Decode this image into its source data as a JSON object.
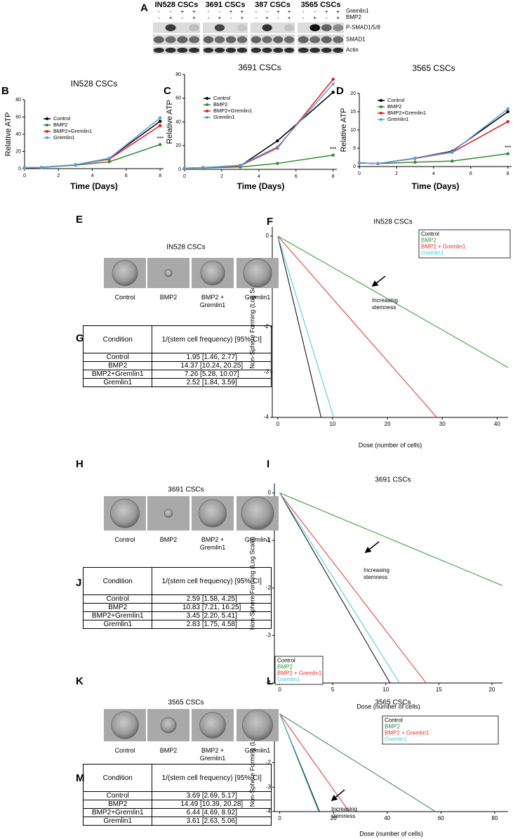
{
  "western_blot": {
    "panel": "A",
    "groups": [
      "IN528 CSCs",
      "3691 CSCs",
      "387 CSCs",
      "3565 CSCs"
    ],
    "treatment_rows": [
      {
        "name": "Gremlin1",
        "signs": [
          "-",
          "-",
          "+",
          "+"
        ]
      },
      {
        "name": "BMP2",
        "signs": [
          "-",
          "+",
          "-",
          "+"
        ]
      }
    ],
    "bands": [
      "P-SMAD1/5/8",
      "SMAD1",
      "Actin"
    ]
  },
  "chart_data": [
    {
      "panel": "B",
      "type": "line",
      "title": "IN528 CSCs",
      "x_label": "Time (Days)",
      "y_label": "Relative ATP",
      "x": [
        0,
        1,
        3,
        5,
        8
      ],
      "xlim": [
        0,
        8.2
      ],
      "xticks": [
        0,
        2,
        4,
        6,
        8
      ],
      "ylim": [
        0,
        80
      ],
      "yticks": [
        0,
        20,
        40,
        60,
        80
      ],
      "markers": true,
      "legend": "upper-left",
      "legend_style": "marker",
      "annotation": "***",
      "series": [
        {
          "name": "Control",
          "color": "#000000",
          "values": [
            1,
            1.5,
            4.5,
            12,
            55
          ]
        },
        {
          "name": "BMP2",
          "color": "#2e8b2e",
          "values": [
            1,
            1.3,
            4,
            8,
            28
          ]
        },
        {
          "name": "BMP2+Gremlin1",
          "color": "#e41a1c",
          "values": [
            1,
            1.5,
            4.5,
            11,
            50
          ]
        },
        {
          "name": "Gremlin1",
          "color": "#5aa0e6",
          "values": [
            1,
            1.5,
            4.5,
            12,
            59
          ]
        }
      ]
    },
    {
      "panel": "C",
      "type": "line",
      "title": "3691 CSCs",
      "x_label": "Time (Days)",
      "y_label": "Relative ATP",
      "x": [
        0,
        1,
        3,
        5,
        8
      ],
      "xlim": [
        0,
        8.2
      ],
      "xticks": [
        0,
        2,
        4,
        6,
        8
      ],
      "ylim": [
        0,
        80
      ],
      "yticks": [
        0,
        20,
        40,
        60,
        80
      ],
      "markers": true,
      "legend": "upper-left",
      "legend_style": "marker",
      "annotation": "***",
      "series": [
        {
          "name": "Control",
          "color": "#000000",
          "values": [
            1,
            1.5,
            3,
            24,
            65
          ]
        },
        {
          "name": "BMP2",
          "color": "#2e8b2e",
          "values": [
            1,
            1.2,
            2,
            5,
            12
          ]
        },
        {
          "name": "BMP2+Gremlin1",
          "color": "#e41a1c",
          "values": [
            1,
            1.5,
            3,
            18,
            76
          ]
        },
        {
          "name": "Gremlin1",
          "color": "#5aa0e6",
          "values": [
            1,
            1.5,
            3.5,
            19,
            72
          ]
        }
      ]
    },
    {
      "panel": "D",
      "type": "line",
      "title": "3565 CSCs",
      "x_label": "Time (Days)",
      "y_label": "Relative ATP",
      "x": [
        0,
        1,
        3,
        5,
        8
      ],
      "xlim": [
        0,
        8.2
      ],
      "xticks": [
        0,
        2,
        4,
        6,
        8
      ],
      "ylim": [
        0,
        20
      ],
      "yticks": [
        0,
        5,
        10,
        15,
        20
      ],
      "markers": true,
      "legend": "upper-left",
      "legend_style": "marker",
      "annotation": "***",
      "series": [
        {
          "name": "Control",
          "color": "#000000",
          "values": [
            1,
            0.8,
            2.3,
            4.2,
            15
          ]
        },
        {
          "name": "BMP2",
          "color": "#2e8b2e",
          "values": [
            1,
            0.8,
            1.2,
            1.5,
            3.5
          ]
        },
        {
          "name": "BMP2+Gremlin1",
          "color": "#e41a1c",
          "values": [
            1,
            0.8,
            2.2,
            3.9,
            12.3
          ]
        },
        {
          "name": "Gremlin1",
          "color": "#5aa0e6",
          "values": [
            1,
            0.8,
            2.3,
            4.0,
            15.8
          ]
        }
      ]
    },
    {
      "panel": "F",
      "type": "line",
      "title": "IN528 CSCs",
      "x_label": "Dose (number of cells)",
      "y_label": "Non-Sphere Forming (Log Scale)",
      "xlim": [
        -1,
        42
      ],
      "xticks": [
        0,
        10,
        20,
        30,
        40
      ],
      "ylim": [
        -4,
        0.2
      ],
      "yticks": [
        0,
        -1,
        -2,
        -3,
        -4
      ],
      "markers": false,
      "legend": "upper-right",
      "legend_style": "text",
      "annotation": [
        "Increasing",
        "stemness"
      ],
      "series": [
        {
          "name": "Control",
          "color": "#000000",
          "x": [
            0,
            7.9
          ],
          "values": [
            0,
            -4
          ]
        },
        {
          "name": "BMP2",
          "color": "#2e9a2e",
          "x": [
            0,
            42
          ],
          "values": [
            0,
            -2.9
          ]
        },
        {
          "name": "BMP2 + Gremlin1",
          "color": "#e53030",
          "x": [
            0,
            29
          ],
          "values": [
            0,
            -4
          ]
        },
        {
          "name": "Gremlin1",
          "color": "#40c8e0",
          "x": [
            0,
            10.2
          ],
          "values": [
            0,
            -4
          ]
        }
      ]
    },
    {
      "panel": "I",
      "type": "line",
      "title": "3691 CSCs",
      "x_label": "Dose (number of cells)",
      "y_label": "Non-Sphere Forming (Log Scale)",
      "xlim": [
        -0.5,
        21
      ],
      "xticks": [
        0,
        5,
        10,
        15,
        20
      ],
      "ylim": [
        -4,
        0.2
      ],
      "yticks": [
        0,
        -1,
        -2,
        -3,
        -4
      ],
      "markers": false,
      "legend": "lower-left",
      "legend_style": "text",
      "annotation": [
        "Increasing",
        "stemness"
      ],
      "series": [
        {
          "name": "Control",
          "color": "#000000",
          "x": [
            0,
            10.4
          ],
          "values": [
            0,
            -4
          ]
        },
        {
          "name": "BMP2",
          "color": "#2e9a2e",
          "x": [
            0,
            21
          ],
          "values": [
            0,
            -1.95
          ]
        },
        {
          "name": "BMP2 + Gremlin1",
          "color": "#e53030",
          "x": [
            0,
            13.8
          ],
          "values": [
            0,
            -4
          ]
        },
        {
          "name": "Gremlin1",
          "color": "#40c8e0",
          "x": [
            0,
            11.3
          ],
          "values": [
            0,
            -4
          ]
        }
      ]
    },
    {
      "panel": "L",
      "type": "line",
      "title": "3565 CSCs",
      "x_label": "Dose (number of cells)",
      "y_label": "Non-Sphere Forming (Log Scale)",
      "xlim": [
        -2,
        85
      ],
      "xticks": [
        0,
        20,
        40,
        60,
        80
      ],
      "ylim": [
        -4,
        0.2
      ],
      "yticks": [
        0,
        -1,
        -2,
        -3,
        -4
      ],
      "markers": false,
      "legend": "upper-right",
      "legend_style": "text",
      "annotation": [
        "Increasing",
        "stemness"
      ],
      "series": [
        {
          "name": "Control",
          "color": "#000000",
          "x": [
            0,
            14.8
          ],
          "values": [
            0,
            -4
          ]
        },
        {
          "name": "BMP2",
          "color": "#2e7d5a",
          "x": [
            0,
            58
          ],
          "values": [
            0,
            -4
          ]
        },
        {
          "name": "BMP2 + Gremlin1",
          "color": "#e53030",
          "x": [
            0,
            25.8
          ],
          "values": [
            0,
            -4
          ]
        },
        {
          "name": "Gremlin1",
          "color": "#40c8e0",
          "x": [
            0,
            14.4
          ],
          "values": [
            0,
            -4
          ]
        }
      ]
    }
  ],
  "sphere_panels": [
    {
      "panel": "E",
      "title": "IN528 CSCs",
      "labels": [
        "Control",
        "BMP2",
        "BMP2 + Gremlin1",
        "Gremlin1"
      ]
    },
    {
      "panel": "H",
      "title": "3691 CSCs",
      "labels": [
        "Control",
        "BMP2",
        "BMP2 + Gremlin1",
        "Gremlin1"
      ]
    },
    {
      "panel": "K",
      "title": "3565 CSCs",
      "labels": [
        "Control",
        "BMP2",
        "BMP2 + Gremlin1",
        "Gremlin1"
      ]
    }
  ],
  "tables": [
    {
      "panel": "G",
      "header": [
        "Condition",
        "1/(stem cell frequency) [95% CI]"
      ],
      "rows": [
        [
          "Control",
          "1.95 [1.46, 2.77]"
        ],
        [
          "BMP2",
          "14.37 [10.24, 20.25]"
        ],
        [
          "BMP2+Gremlin1",
          "7.26 [5.28, 10.07]"
        ],
        [
          "Gremlin1",
          "2.52 [1.84, 3.59]"
        ]
      ]
    },
    {
      "panel": "J",
      "header": [
        "Condition",
        "1/(stem cell frequency) [95% CI]"
      ],
      "rows": [
        [
          "Control",
          "2.59 [1.58, 4.25]"
        ],
        [
          "BMP2",
          "10.83 [7.21, 16.25]"
        ],
        [
          "BMP2+Gremlin1",
          "3.45 [2.20, 5.41]"
        ],
        [
          "Gremlin1",
          "2.83 [1.75, 4.58]"
        ]
      ]
    },
    {
      "panel": "M",
      "header": [
        "Condition",
        "1/(stem cell frequency) [95% CI]"
      ],
      "rows": [
        [
          "Control",
          "3.69 [2.69, 5.17]"
        ],
        [
          "BMP2",
          "14.49 [10.39, 20.28]"
        ],
        [
          "BMP2+Gremlin1",
          "6.44 [4.69, 8.92]"
        ],
        [
          "Gremlin1",
          "3.61 [2.63, 5.06]"
        ]
      ]
    }
  ]
}
